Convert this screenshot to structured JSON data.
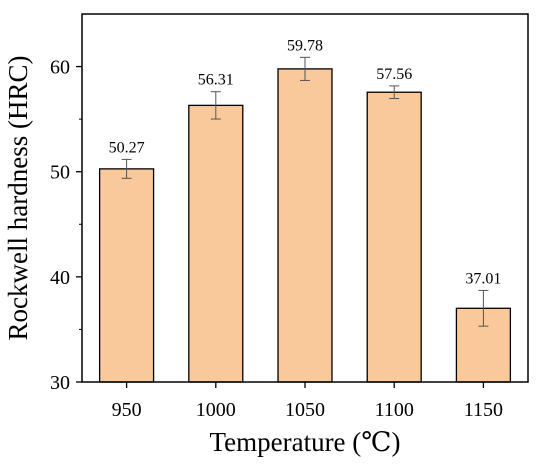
{
  "chart_data": {
    "type": "bar",
    "title": "",
    "xlabel": "Temperature (℃)",
    "ylabel": "Rockwell hardness (HRC)",
    "categories": [
      "950",
      "1000",
      "1050",
      "1100",
      "1150"
    ],
    "values": [
      50.27,
      56.31,
      59.78,
      57.56,
      37.01
    ],
    "value_labels": [
      "50.27",
      "56.31",
      "59.78",
      "57.56",
      "37.01"
    ],
    "error_bars": [
      0.9,
      1.3,
      1.1,
      0.6,
      1.7
    ],
    "ylim": [
      30,
      65
    ],
    "yticks": [
      30,
      40,
      50,
      60
    ],
    "ytick_labels": [
      "30",
      "40",
      "50",
      "60"
    ],
    "grid": false,
    "colors": {
      "bar_fill": "#f9c89b",
      "bar_stroke": "#000000",
      "error_bar": "#555555"
    }
  }
}
